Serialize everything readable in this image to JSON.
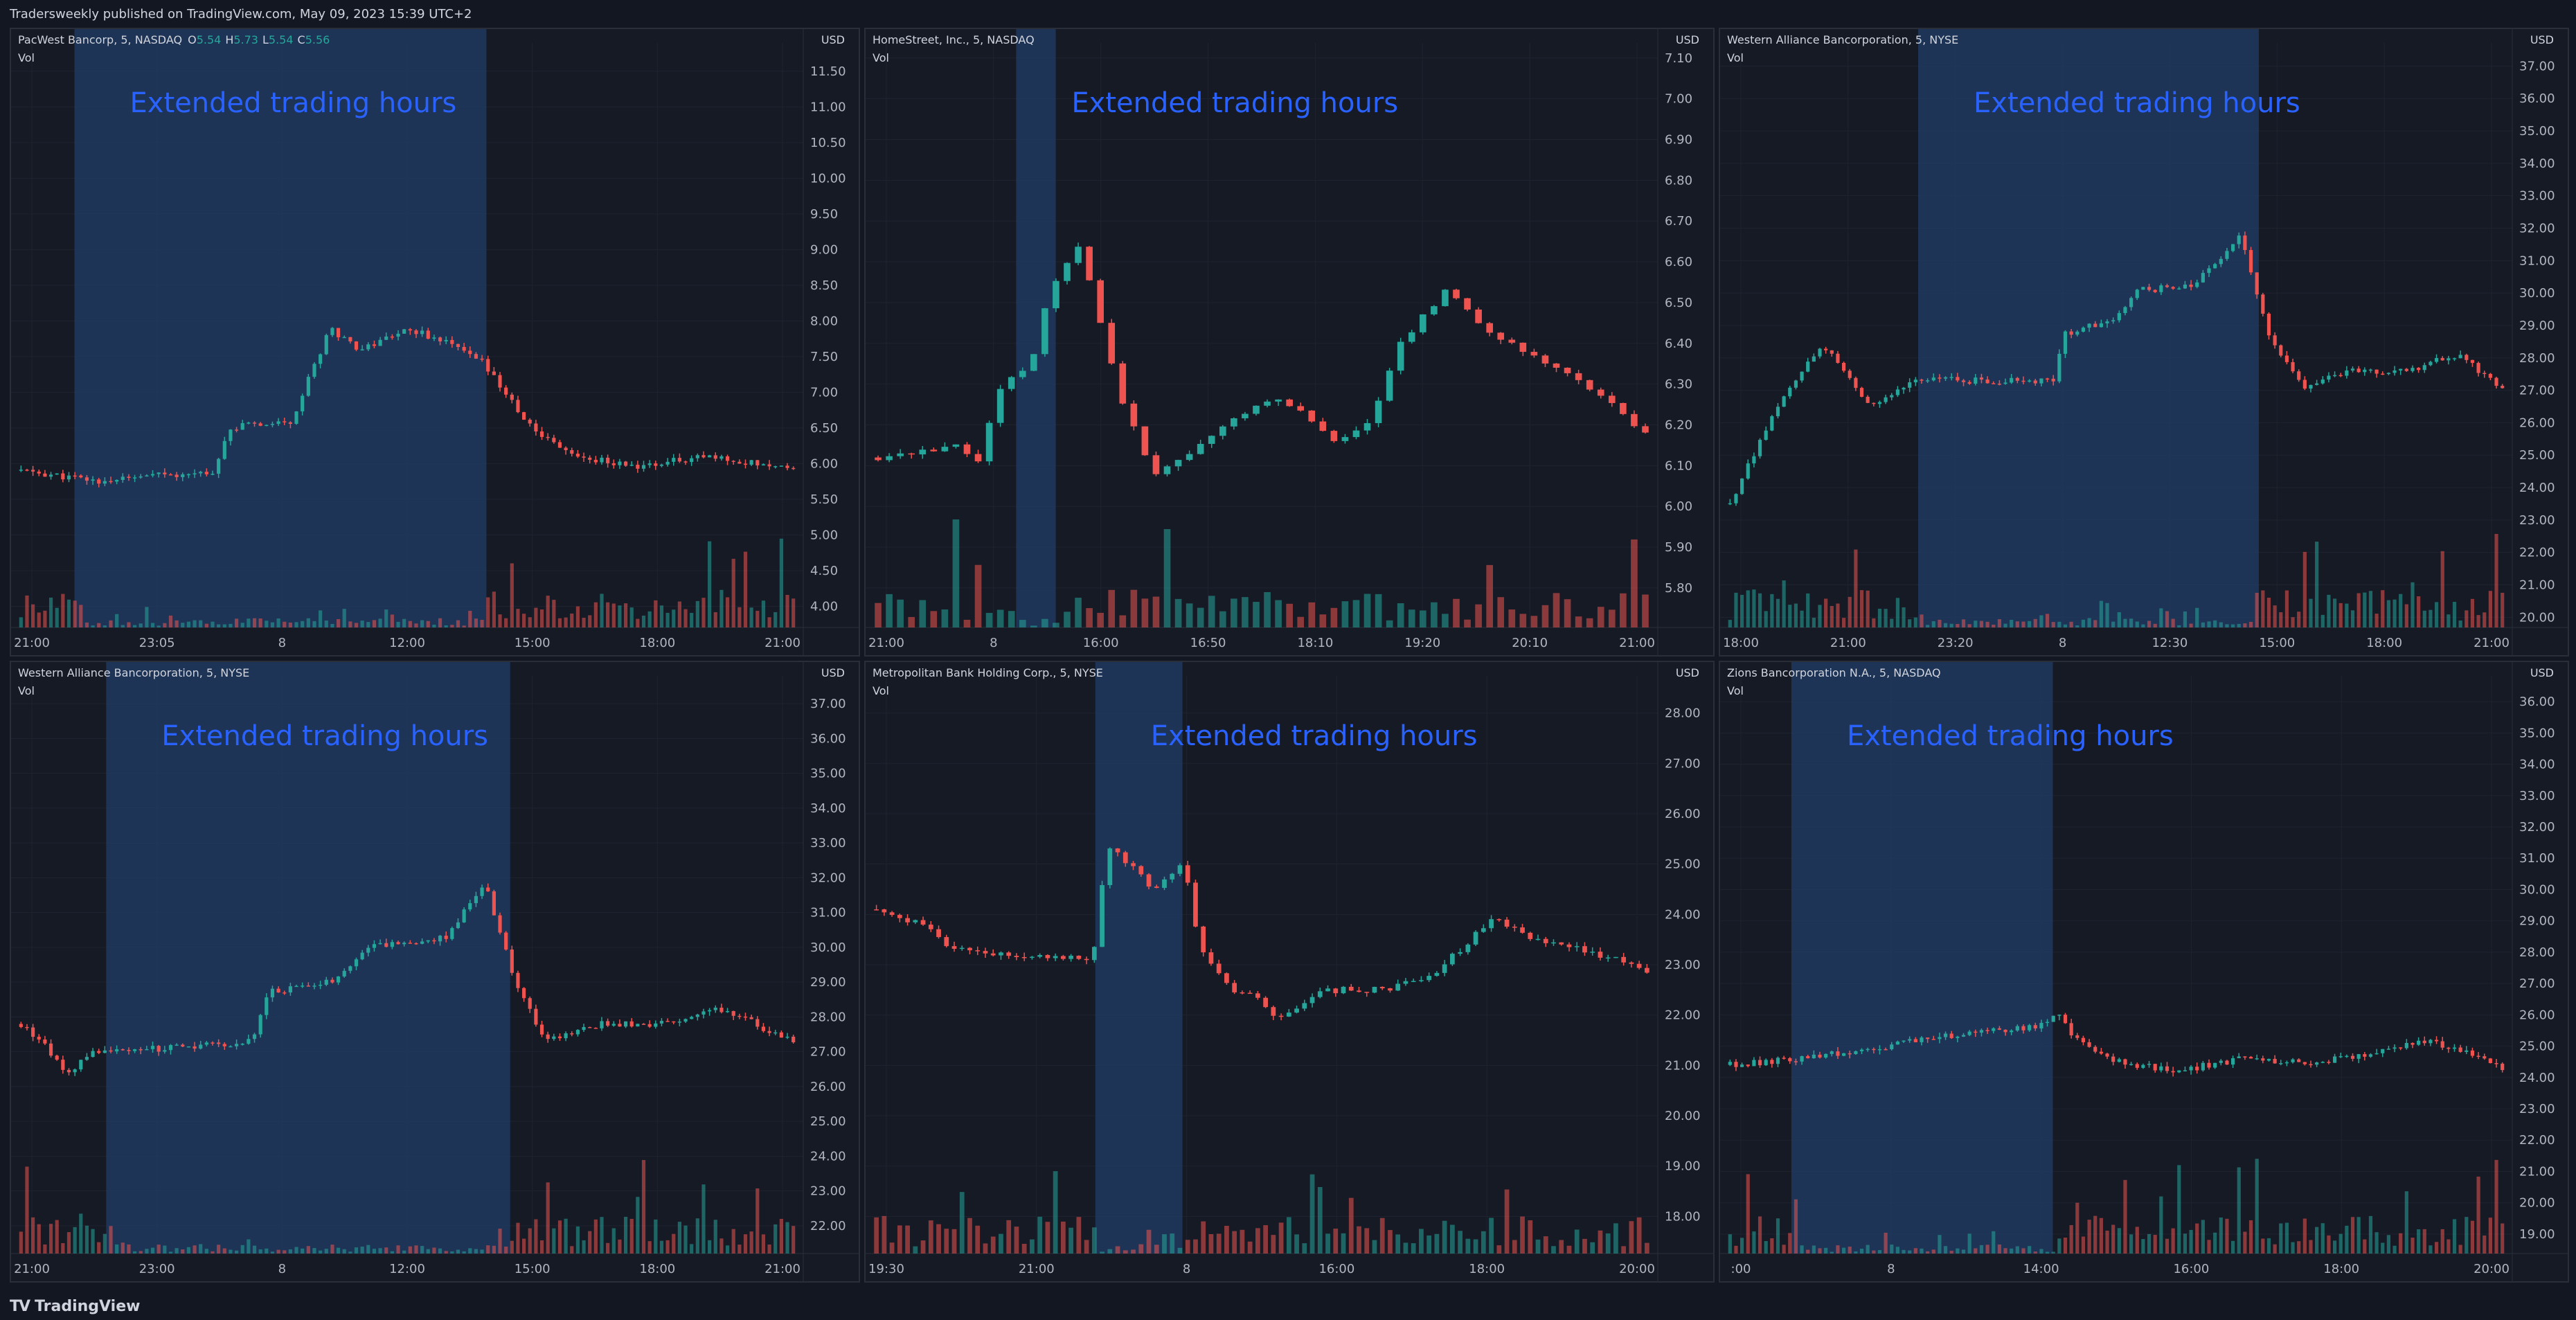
{
  "header": {
    "published": "Tradersweekly published on TradingView.com, May 09, 2023 15:39 UTC+2"
  },
  "footer": {
    "brand": "TradingView",
    "brand_icon": "tradingview-logo-icon"
  },
  "colors": {
    "up": "#26a69a",
    "down": "#ef5350",
    "ext_hours": "#1e3a5f",
    "annotation": "#2962ff",
    "grid": "#1f2330",
    "axis_text": "#b2b5be"
  },
  "charts": [
    {
      "id": "pacw",
      "title": "PacWest Bancorp, 5, NASDAQ",
      "ohlc": {
        "o_label": "O",
        "o": "5.54",
        "h_label": "H",
        "h": "5.73",
        "l_label": "L",
        "l": "5.54",
        "c_label": "C",
        "c": "5.56"
      },
      "volume_label": "Vol",
      "currency": "USD",
      "annotation": "Extended trading hours",
      "chart_data": {
        "type": "candlestick",
        "y_ticks": [
          "11.50",
          "11.00",
          "10.50",
          "10.00",
          "9.50",
          "9.00",
          "8.50",
          "8.00",
          "7.50",
          "7.00",
          "6.50",
          "6.00",
          "5.50",
          "5.00",
          "4.50",
          "4.00"
        ],
        "x_ticks": [
          "21:00",
          "23:05",
          "8",
          "12:00",
          "15:00",
          "18:00",
          "21:00"
        ],
        "ylim": [
          3.8,
          11.8
        ],
        "bars": 130,
        "ext_hours_range": [
          0.08,
          0.6
        ],
        "path": [
          [
            0,
            5.9
          ],
          [
            0.1,
            5.75
          ],
          [
            0.25,
            5.9
          ],
          [
            0.27,
            6.5
          ],
          [
            0.35,
            6.6
          ],
          [
            0.4,
            7.9
          ],
          [
            0.44,
            7.6
          ],
          [
            0.5,
            7.9
          ],
          [
            0.55,
            7.7
          ],
          [
            0.6,
            7.4
          ],
          [
            0.66,
            6.5
          ],
          [
            0.72,
            6.1
          ],
          [
            0.8,
            5.95
          ],
          [
            0.88,
            6.1
          ],
          [
            1,
            5.95
          ]
        ]
      }
    },
    {
      "id": "hmst",
      "title": "HomeStreet, Inc., 5, NASDAQ",
      "volume_label": "Vol",
      "currency": "USD",
      "annotation": "Extended trading hours",
      "chart_data": {
        "type": "candlestick",
        "y_ticks": [
          "7.10",
          "7.00",
          "6.90",
          "6.80",
          "6.70",
          "6.60",
          "6.50",
          "6.40",
          "6.30",
          "6.20",
          "6.10",
          "6.00",
          "5.90",
          "5.80"
        ],
        "x_ticks": [
          "21:00",
          "8",
          "16:00",
          "16:50",
          "18:10",
          "19:20",
          "20:10",
          "21:00"
        ],
        "ylim": [
          5.72,
          7.12
        ],
        "bars": 70,
        "ext_hours_range": [
          0.19,
          0.24
        ],
        "path": [
          [
            0,
            6.12
          ],
          [
            0.1,
            6.15
          ],
          [
            0.13,
            6.1
          ],
          [
            0.16,
            6.3
          ],
          [
            0.2,
            6.35
          ],
          [
            0.22,
            6.5
          ],
          [
            0.26,
            6.65
          ],
          [
            0.29,
            6.45
          ],
          [
            0.32,
            6.25
          ],
          [
            0.36,
            6.07
          ],
          [
            0.45,
            6.2
          ],
          [
            0.52,
            6.27
          ],
          [
            0.6,
            6.16
          ],
          [
            0.64,
            6.2
          ],
          [
            0.68,
            6.4
          ],
          [
            0.74,
            6.53
          ],
          [
            0.8,
            6.42
          ],
          [
            0.9,
            6.33
          ],
          [
            1,
            6.18
          ]
        ]
      }
    },
    {
      "id": "wal1",
      "title": "Western Alliance Bancorporation, 5, NYSE",
      "volume_label": "Vol",
      "currency": "USD",
      "annotation": "Extended trading hours",
      "chart_data": {
        "type": "candlestick",
        "y_ticks": [
          "37.00",
          "36.00",
          "35.00",
          "34.00",
          "33.00",
          "32.00",
          "31.00",
          "30.00",
          "29.00",
          "28.00",
          "27.00",
          "26.00",
          "25.00",
          "24.00",
          "23.00",
          "22.00",
          "21.00",
          "20.00"
        ],
        "x_ticks": [
          "18:00",
          "21:00",
          "23:20",
          "8",
          "12:30",
          "15:00",
          "18:00",
          "21:00"
        ],
        "ylim": [
          19.9,
          37.5
        ],
        "bars": 130,
        "ext_hours_range": [
          0.25,
          0.68
        ],
        "path": [
          [
            0,
            23.5
          ],
          [
            0.06,
            26.5
          ],
          [
            0.12,
            28.4
          ],
          [
            0.18,
            26.5
          ],
          [
            0.24,
            27.4
          ],
          [
            0.3,
            27.3
          ],
          [
            0.42,
            27.3
          ],
          [
            0.43,
            28.7
          ],
          [
            0.5,
            29.2
          ],
          [
            0.53,
            30.1
          ],
          [
            0.6,
            30.2
          ],
          [
            0.66,
            31.8
          ],
          [
            0.7,
            28.5
          ],
          [
            0.74,
            27.1
          ],
          [
            0.8,
            27.6
          ],
          [
            0.88,
            27.6
          ],
          [
            0.94,
            28.1
          ],
          [
            1,
            27.1
          ]
        ]
      }
    },
    {
      "id": "wal2",
      "title": "Western Alliance Bancorporation, 5, NYSE",
      "volume_label": "Vol",
      "currency": "USD",
      "annotation": "Extended trading hours",
      "chart_data": {
        "type": "candlestick",
        "y_ticks": [
          "37.00",
          "36.00",
          "35.00",
          "34.00",
          "33.00",
          "32.00",
          "31.00",
          "30.00",
          "29.00",
          "28.00",
          "27.00",
          "26.00",
          "25.00",
          "24.00",
          "23.00",
          "22.00"
        ],
        "x_ticks": [
          "21:00",
          "23:00",
          "8",
          "12:00",
          "15:00",
          "18:00",
          "21:00"
        ],
        "ylim": [
          21.4,
          37.6
        ],
        "bars": 130,
        "ext_hours_range": [
          0.12,
          0.63
        ],
        "path": [
          [
            0,
            27.8
          ],
          [
            0.03,
            27.2
          ],
          [
            0.06,
            26.3
          ],
          [
            0.09,
            27.0
          ],
          [
            0.12,
            27.0
          ],
          [
            0.3,
            27.3
          ],
          [
            0.32,
            28.7
          ],
          [
            0.4,
            29.0
          ],
          [
            0.45,
            30.0
          ],
          [
            0.55,
            30.3
          ],
          [
            0.6,
            31.9
          ],
          [
            0.64,
            29.0
          ],
          [
            0.68,
            27.3
          ],
          [
            0.75,
            27.8
          ],
          [
            0.85,
            27.8
          ],
          [
            0.9,
            28.3
          ],
          [
            1,
            27.3
          ]
        ]
      }
    },
    {
      "id": "mcb",
      "title": "Metropolitan Bank Holding Corp., 5, NYSE",
      "volume_label": "Vol",
      "currency": "USD",
      "annotation": "Extended trading hours",
      "chart_data": {
        "type": "candlestick",
        "y_ticks": [
          "28.00",
          "27.00",
          "26.00",
          "25.00",
          "24.00",
          "23.00",
          "22.00",
          "21.00",
          "20.00",
          "19.00",
          "18.00"
        ],
        "x_ticks": [
          "19:30",
          "21:00",
          "8",
          "16:00",
          "18:00",
          "20:00"
        ],
        "ylim": [
          17.4,
          28.6
        ],
        "bars": 100,
        "ext_hours_range": [
          0.29,
          0.4
        ],
        "path": [
          [
            0,
            24.1
          ],
          [
            0.06,
            23.8
          ],
          [
            0.1,
            23.3
          ],
          [
            0.2,
            23.2
          ],
          [
            0.28,
            23.1
          ],
          [
            0.3,
            25.3
          ],
          [
            0.33,
            25.0
          ],
          [
            0.36,
            24.5
          ],
          [
            0.4,
            25.0
          ],
          [
            0.42,
            23.3
          ],
          [
            0.46,
            22.5
          ],
          [
            0.5,
            22.3
          ],
          [
            0.52,
            21.9
          ],
          [
            0.58,
            22.5
          ],
          [
            0.66,
            22.5
          ],
          [
            0.72,
            22.8
          ],
          [
            0.8,
            23.9
          ],
          [
            0.84,
            23.6
          ],
          [
            0.92,
            23.3
          ],
          [
            1,
            22.9
          ]
        ]
      }
    },
    {
      "id": "zion",
      "title": "Zions Bancorporation N.A., 5, NASDAQ",
      "volume_label": "Vol",
      "currency": "USD",
      "annotation": "Extended trading hours",
      "chart_data": {
        "type": "candlestick",
        "y_ticks": [
          "36.00",
          "35.00",
          "34.00",
          "33.00",
          "32.00",
          "31.00",
          "30.00",
          "29.00",
          "28.00",
          "27.00",
          "26.00",
          "25.00",
          "24.00",
          "23.00",
          "22.00",
          "21.00",
          "20.00",
          "19.00"
        ],
        "x_ticks": [
          ":00",
          "8",
          "14:00",
          "16:00",
          "18:00",
          "20:00"
        ],
        "ylim": [
          18.6,
          36.6
        ],
        "bars": 130,
        "ext_hours_range": [
          0.09,
          0.42
        ],
        "path": [
          [
            0,
            24.4
          ],
          [
            0.08,
            24.6
          ],
          [
            0.12,
            24.7
          ],
          [
            0.2,
            25.0
          ],
          [
            0.3,
            25.4
          ],
          [
            0.4,
            25.6
          ],
          [
            0.42,
            26.1
          ],
          [
            0.45,
            25.2
          ],
          [
            0.5,
            24.5
          ],
          [
            0.58,
            24.2
          ],
          [
            0.66,
            24.6
          ],
          [
            0.75,
            24.5
          ],
          [
            0.82,
            24.7
          ],
          [
            0.9,
            25.2
          ],
          [
            0.95,
            24.8
          ],
          [
            1,
            24.3
          ]
        ]
      }
    }
  ]
}
